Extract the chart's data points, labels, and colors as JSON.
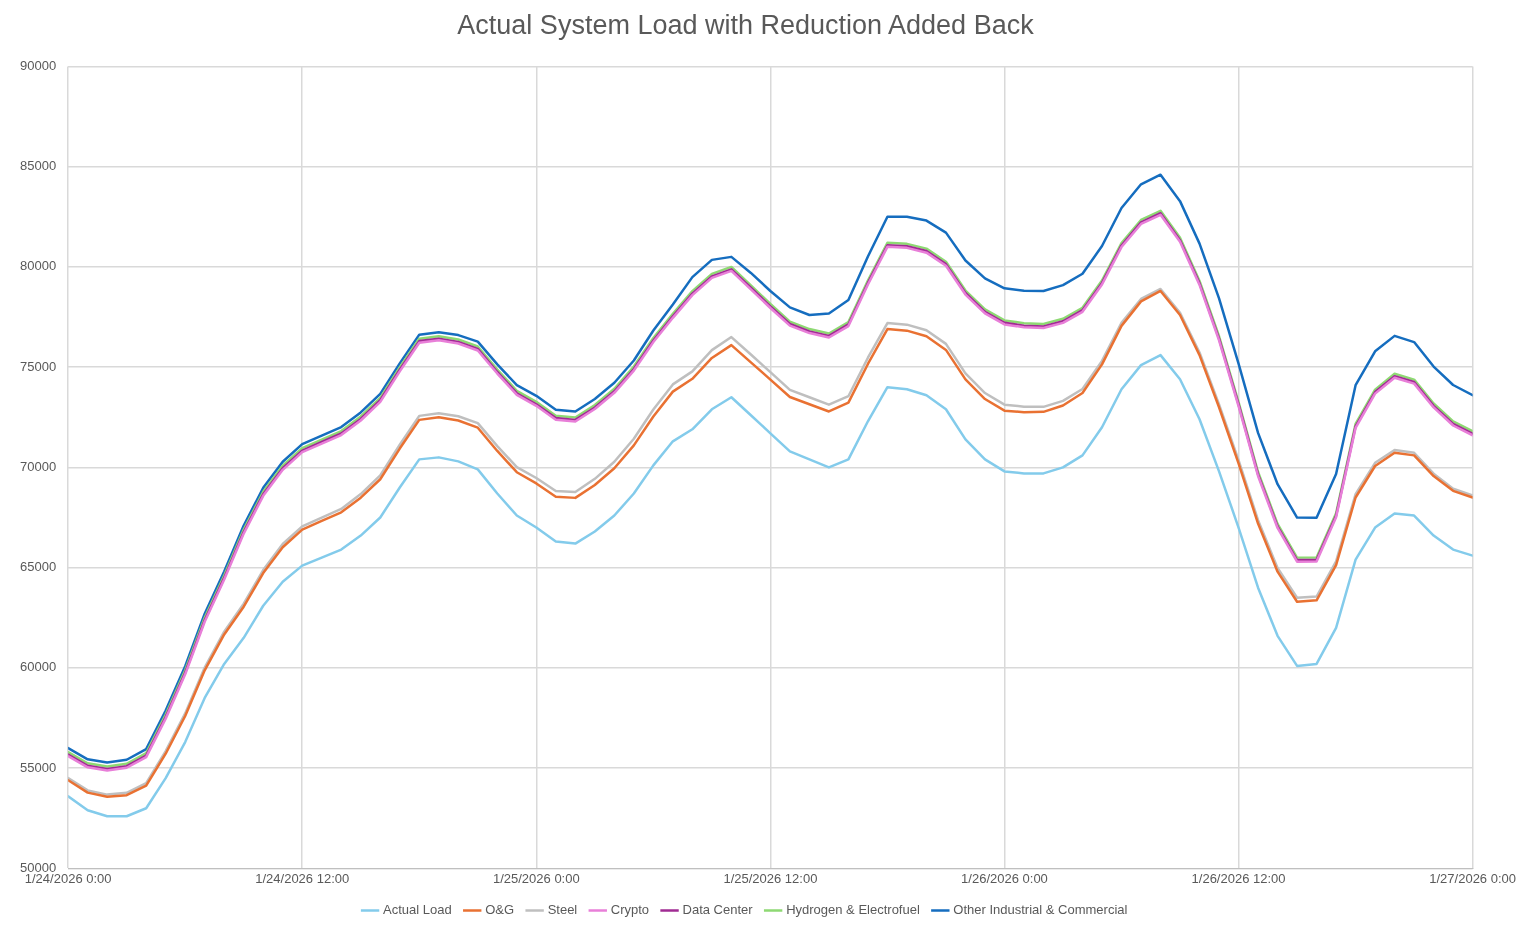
{
  "chart_data": {
    "type": "line",
    "title": "Actual System Load with Reduction Added Back",
    "x": [
      "2026-01-24T00:00",
      "2026-01-24T01:00",
      "2026-01-24T02:00",
      "2026-01-24T03:00",
      "2026-01-24T04:00",
      "2026-01-24T05:00",
      "2026-01-24T06:00",
      "2026-01-24T07:00",
      "2026-01-24T08:00",
      "2026-01-24T09:00",
      "2026-01-24T10:00",
      "2026-01-24T11:00",
      "2026-01-24T12:00",
      "2026-01-24T13:00",
      "2026-01-24T14:00",
      "2026-01-24T15:00",
      "2026-01-24T16:00",
      "2026-01-24T17:00",
      "2026-01-24T18:00",
      "2026-01-24T19:00",
      "2026-01-24T20:00",
      "2026-01-24T21:00",
      "2026-01-24T22:00",
      "2026-01-24T23:00",
      "2026-01-25T00:00",
      "2026-01-25T01:00",
      "2026-01-25T02:00",
      "2026-01-25T03:00",
      "2026-01-25T04:00",
      "2026-01-25T05:00",
      "2026-01-25T06:00",
      "2026-01-25T07:00",
      "2026-01-25T08:00",
      "2026-01-25T09:00",
      "2026-01-25T10:00",
      "2026-01-25T11:00",
      "2026-01-25T12:00",
      "2026-01-25T13:00",
      "2026-01-25T14:00",
      "2026-01-25T15:00",
      "2026-01-25T16:00",
      "2026-01-25T17:00",
      "2026-01-25T18:00",
      "2026-01-25T19:00",
      "2026-01-25T20:00",
      "2026-01-25T21:00",
      "2026-01-25T22:00",
      "2026-01-25T23:00",
      "2026-01-26T00:00",
      "2026-01-26T01:00",
      "2026-01-26T02:00",
      "2026-01-26T03:00",
      "2026-01-26T04:00",
      "2026-01-26T05:00",
      "2026-01-26T06:00",
      "2026-01-26T07:00",
      "2026-01-26T08:00",
      "2026-01-26T09:00",
      "2026-01-26T10:00",
      "2026-01-26T11:00",
      "2026-01-26T12:00",
      "2026-01-26T13:00",
      "2026-01-26T14:00",
      "2026-01-26T15:00",
      "2026-01-26T16:00",
      "2026-01-26T17:00",
      "2026-01-26T18:00",
      "2026-01-26T19:00",
      "2026-01-26T20:00",
      "2026-01-26T21:00",
      "2026-01-26T22:00",
      "2026-01-26T23:00",
      "2026-01-27T00:00"
    ],
    "series": [
      {
        "name": "Actual Load",
        "color": "#83cbeb",
        "values": [
          53600,
          52900,
          52600,
          52600,
          53000,
          54500,
          56300,
          58500,
          60200,
          61500,
          63100,
          64300,
          65100,
          65500,
          65900,
          66600,
          67500,
          69000,
          70400,
          70500,
          70300,
          69900,
          68700,
          67600,
          67000,
          66300,
          66200,
          66800,
          67600,
          68700,
          70100,
          71300,
          71900,
          72900,
          73500,
          72600,
          71700,
          70800,
          70400,
          70000,
          70400,
          72300,
          74000,
          73900,
          73600,
          72900,
          71400,
          70400,
          69800,
          69700,
          69700,
          70000,
          70600,
          72000,
          73900,
          75100,
          75600,
          74400,
          72400,
          69800,
          67000,
          64000,
          61600,
          60100,
          60200,
          62000,
          65400,
          67000,
          67700,
          67600,
          66600,
          65900,
          65600
        ]
      },
      {
        "name": "O&G",
        "color": "#e97132",
        "values": [
          54400,
          53780,
          53570,
          53650,
          54130,
          55720,
          57600,
          59880,
          61670,
          63050,
          64730,
          66020,
          66900,
          67330,
          67760,
          68490,
          69410,
          70940,
          72370,
          72500,
          72340,
          71980,
          70820,
          69760,
          69200,
          68540,
          68480,
          69120,
          69960,
          71100,
          72540,
          73780,
          74420,
          75460,
          76100,
          75240,
          74380,
          73510,
          73150,
          72790,
          73230,
          75160,
          76900,
          76820,
          76540,
          75860,
          74390,
          73410,
          72830,
          72750,
          72770,
          73090,
          73710,
          75140,
          77060,
          78280,
          78800,
          77600,
          75600,
          73000,
          70200,
          67200,
          64800,
          63300,
          63370,
          65130,
          68500,
          70070,
          70730,
          70600,
          69570,
          68830,
          68500
        ]
      },
      {
        "name": "Steel",
        "color": "#bfbfbf",
        "values": [
          54500,
          53890,
          53680,
          53770,
          54250,
          55850,
          57730,
          60020,
          61810,
          63200,
          64880,
          66180,
          67060,
          67500,
          67930,
          68670,
          69600,
          71130,
          72570,
          72700,
          72550,
          72210,
          71060,
          70010,
          69470,
          68820,
          68770,
          69430,
          70280,
          71430,
          72890,
          74140,
          74790,
          75850,
          76500,
          75630,
          74750,
          73870,
          73500,
          73130,
          73550,
          75470,
          77200,
          77120,
          76840,
          76160,
          74690,
          73710,
          73130,
          73030,
          73020,
          73320,
          73910,
          75310,
          77210,
          78400,
          78900,
          77710,
          75730,
          73140,
          70360,
          67370,
          64980,
          63500,
          63560,
          65310,
          68670,
          70230,
          70870,
          70730,
          69690,
          68940,
          68600
        ]
      },
      {
        "name": "Crypto",
        "color": "#e87fd8",
        "values": [
          55600,
          55040,
          54880,
          55020,
          55550,
          57470,
          59680,
          62300,
          64410,
          66700,
          68580,
          69880,
          70760,
          71190,
          71610,
          72340,
          73270,
          74790,
          76220,
          76340,
          76180,
          75830,
          74680,
          73620,
          73070,
          72380,
          72290,
          72910,
          73720,
          74830,
          76250,
          77460,
          78590,
          79450,
          79800,
          78880,
          77950,
          77070,
          76700,
          76480,
          77050,
          79120,
          81000,
          80950,
          80710,
          80060,
          78620,
          77680,
          77130,
          76990,
          76950,
          77210,
          77760,
          79120,
          80990,
          82140,
          82600,
          81250,
          79100,
          76340,
          73060,
          69570,
          66980,
          65300,
          65310,
          67510,
          71970,
          73680,
          74470,
          74180,
          72990,
          72090,
          71600
        ]
      },
      {
        "name": "Data Center",
        "color": "#a02b93",
        "values": [
          55680,
          55120,
          54960,
          55100,
          55630,
          57550,
          59760,
          62380,
          64490,
          66780,
          68660,
          69960,
          70840,
          71270,
          71690,
          72420,
          73350,
          74870,
          76300,
          76420,
          76260,
          75910,
          74760,
          73700,
          73150,
          72460,
          72370,
          72990,
          73800,
          74910,
          76330,
          77540,
          78670,
          79530,
          79880,
          78960,
          78030,
          77150,
          76780,
          76560,
          77130,
          79200,
          81080,
          81030,
          80790,
          80140,
          78700,
          77760,
          77210,
          77070,
          77030,
          77290,
          77840,
          79200,
          81070,
          82220,
          82680,
          81330,
          79180,
          76420,
          73140,
          69650,
          67060,
          65380,
          65390,
          67590,
          72050,
          73760,
          74550,
          74260,
          73070,
          72170,
          71680
        ]
      },
      {
        "name": "Hydrogen & Electrofuel",
        "color": "#8ed973",
        "values": [
          55800,
          55240,
          55080,
          55220,
          55750,
          57670,
          59880,
          62500,
          64610,
          66900,
          68780,
          70080,
          70960,
          71390,
          71810,
          72540,
          73470,
          74990,
          76420,
          76540,
          76380,
          76030,
          74880,
          73820,
          73270,
          72580,
          72490,
          73110,
          73920,
          75030,
          76450,
          77660,
          78790,
          79650,
          80000,
          79080,
          78150,
          77270,
          76900,
          76680,
          77250,
          79320,
          81200,
          81150,
          80910,
          80260,
          78820,
          77880,
          77330,
          77190,
          77150,
          77410,
          77960,
          79320,
          81190,
          82340,
          82800,
          81450,
          79300,
          76540,
          73260,
          69770,
          67180,
          65500,
          65510,
          67710,
          72170,
          73880,
          74670,
          74380,
          73190,
          72290,
          71800
        ]
      },
      {
        "name": "Other Industrial & Commercial",
        "color": "#156dbf",
        "values": [
          56000,
          55440,
          55280,
          55420,
          55950,
          57870,
          60080,
          62700,
          64810,
          67100,
          68980,
          70280,
          71160,
          71590,
          72010,
          72740,
          73670,
          75190,
          76620,
          76740,
          76600,
          76270,
          75140,
          74100,
          73570,
          72880,
          72790,
          73410,
          74220,
          75330,
          76830,
          78120,
          79490,
          80350,
          80500,
          79700,
          78800,
          77980,
          77600,
          77680,
          78350,
          80520,
          82500,
          82500,
          82310,
          81710,
          80320,
          79430,
          78930,
          78810,
          78800,
          79090,
          79660,
          81040,
          82940,
          84120,
          84600,
          83280,
          81160,
          78430,
          75180,
          71720,
          69160,
          67500,
          67490,
          69670,
          74100,
          75790,
          76560,
          76250,
          75030,
          74110,
          73600
        ]
      }
    ],
    "xlim": [
      "2026-01-24T00:00",
      "2026-01-27T00:00"
    ],
    "xticks": [
      {
        "value": "2026-01-24T00:00",
        "label": "1/24/2026 0:00"
      },
      {
        "value": "2026-01-24T12:00",
        "label": "1/24/2026 12:00"
      },
      {
        "value": "2026-01-25T00:00",
        "label": "1/25/2026 0:00"
      },
      {
        "value": "2026-01-25T12:00",
        "label": "1/25/2026 12:00"
      },
      {
        "value": "2026-01-26T00:00",
        "label": "1/26/2026 0:00"
      },
      {
        "value": "2026-01-26T12:00",
        "label": "1/26/2026 12:00"
      },
      {
        "value": "2026-01-27T00:00",
        "label": "1/27/2026 0:00"
      }
    ],
    "ylim": [
      50000,
      90000
    ],
    "yticks": [
      50000,
      55000,
      60000,
      65000,
      70000,
      75000,
      80000,
      85000,
      90000
    ],
    "grid": true,
    "legend": "bottom"
  }
}
